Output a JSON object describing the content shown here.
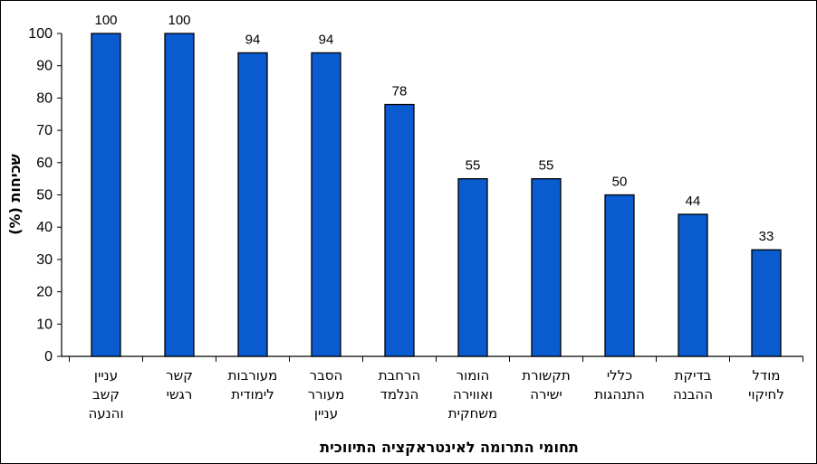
{
  "chart_data": {
    "type": "bar",
    "xlabel": "תחומי התרומה לאינטראקציה התיווכית",
    "ylabel": "שכיחות (%)",
    "ylim": [
      0,
      100
    ],
    "yticks": [
      0,
      10,
      20,
      30,
      40,
      50,
      60,
      70,
      80,
      90,
      100
    ],
    "grid": false,
    "legend": "none",
    "bar_color": "#0a5bd0",
    "categories": [
      [
        "עניין",
        "קשב",
        "והנעה"
      ],
      [
        "קשר",
        "רגשי"
      ],
      [
        "מעורבות",
        "לימודית"
      ],
      [
        "הסבר",
        "מעורר",
        "עניין"
      ],
      [
        "הרחבת",
        "הנלמד"
      ],
      [
        "הומור",
        "ואווירה",
        "משחקית"
      ],
      [
        "תקשורת",
        "ישירה"
      ],
      [
        "כללי",
        "התנהגות"
      ],
      [
        "בדיקת",
        "ההבנה"
      ],
      [
        "מודל",
        "לחיקוי"
      ]
    ],
    "values": [
      100,
      100,
      94,
      94,
      78,
      55,
      55,
      50,
      44,
      33
    ]
  }
}
